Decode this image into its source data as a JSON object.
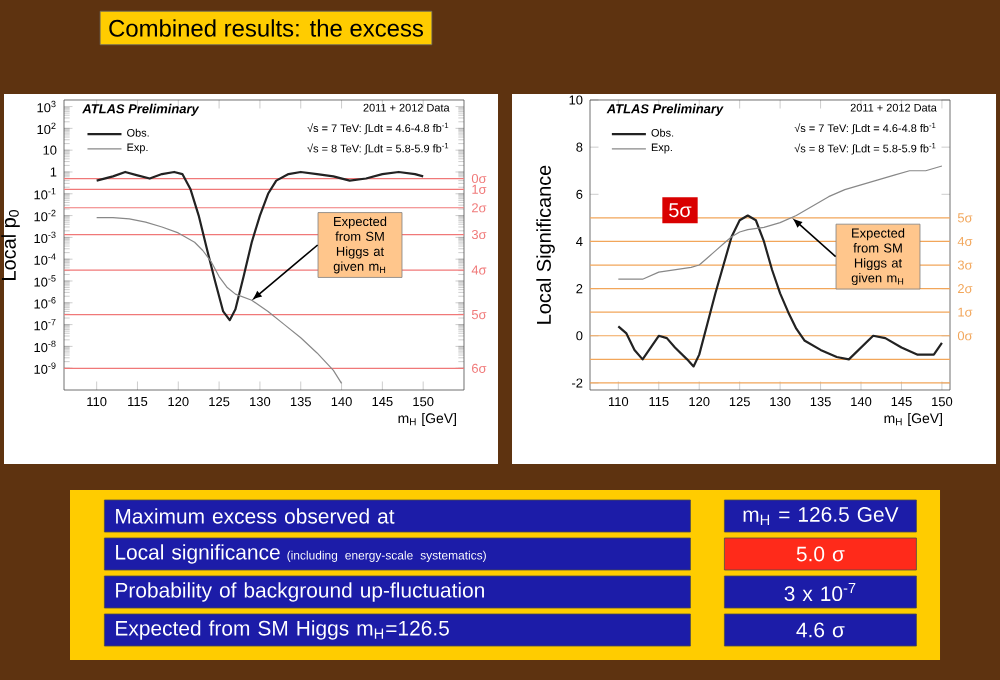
{
  "chart_data": [
    {
      "type": "line",
      "title": "Combined results: the excess",
      "xlabel": "m$_{H}$ [GeV]",
      "ylabel": "Local p$_{0}$",
      "log": "y",
      "legend": "top left",
      "xlim": [
        106,
        155
      ],
      "ylim": [
        1e-10,
        2000
      ],
      "xticks": [
        110,
        115,
        120,
        125,
        130,
        135,
        140,
        145,
        150
      ],
      "yticks": [
        {
          "value": 1e-09,
          "label": "10$^{-9}$"
        },
        {
          "value": 1e-08,
          "label": "10$^{-8}$"
        },
        {
          "value": 1e-07,
          "label": "10$^{-7}$"
        },
        {
          "value": 1e-06,
          "label": "10$^{-6}$"
        },
        {
          "value": 1e-05,
          "label": "10$^{-5}$"
        },
        {
          "value": 0.0001,
          "label": "10$^{-4}$"
        },
        {
          "value": 0.001,
          "label": "10$^{-3}$"
        },
        {
          "value": 0.01,
          "label": "10$^{-2}$"
        },
        {
          "value": 0.1,
          "label": "10$^{-1}$"
        },
        1,
        10,
        {
          "value": 100,
          "label": "10$^{2}$"
        },
        {
          "value": 1000,
          "label": "10$^{3}$"
        }
      ],
      "series": [
        {
          "name": "Obs.",
          "color": "#222222",
          "x": [
            110,
            112,
            113.5,
            115,
            116.5,
            118,
            119.5,
            120.5,
            121.5,
            122.5,
            123.5,
            124.5,
            125.5,
            126.3,
            127,
            128,
            129,
            130,
            131,
            132,
            133.5,
            135,
            137,
            139,
            141,
            143,
            145,
            147,
            149,
            150
          ],
          "values": [
            0.4,
            0.63,
            1,
            0.7,
            0.5,
            0.8,
            1,
            0.8,
            0.16,
            0.01,
            0.0003,
            1e-05,
            4e-07,
            1.6e-07,
            5e-07,
            1.6e-05,
            0.0006,
            0.01,
            0.1,
            0.4,
            0.8,
            1,
            0.8,
            0.63,
            0.4,
            0.5,
            0.8,
            1,
            0.8,
            0.63
          ]
        },
        {
          "name": "Exp.",
          "color": "#888888",
          "x": [
            110,
            112,
            114,
            116,
            118,
            120,
            122,
            123,
            124,
            125,
            126,
            127,
            129,
            131,
            133,
            135,
            137,
            139,
            140
          ],
          "values": [
            0.008,
            0.008,
            0.007,
            0.005,
            0.003,
            0.0016,
            0.0006,
            0.00025,
            8e-05,
            1.6e-05,
            5e-06,
            2.5e-06,
            1.3e-06,
            4e-07,
            1e-07,
            2.5e-08,
            5e-09,
            8e-10,
            2e-10
          ]
        }
      ],
      "ref_lines": [
        {
          "axis": "y",
          "value": 0.5,
          "label": "0σ",
          "color": "#f07878"
        },
        {
          "axis": "y",
          "value": 0.159,
          "label": "1σ",
          "color": "#f07878"
        },
        {
          "axis": "y",
          "value": 0.0228,
          "label": "2σ",
          "color": "#f07878"
        },
        {
          "axis": "y",
          "value": 0.00135,
          "label": "3σ",
          "color": "#f07878"
        },
        {
          "axis": "y",
          "value": 3.17e-05,
          "label": "4σ",
          "color": "#f07878"
        },
        {
          "axis": "y",
          "value": 2.87e-07,
          "label": "5σ",
          "color": "#f07878"
        },
        {
          "axis": "y",
          "value": 9.87e-10,
          "label": "6σ",
          "color": "#f07878"
        }
      ],
      "annotations": [
        "ATLAS Preliminary",
        "2011 + 2012 Data",
        "√s = 7 TeV: ∫Ldt = 4.6-4.8 fb$^{-1}$",
        "√s = 8 TeV: ∫Ldt = 5.8-5.9 fb$^{-1}$",
        {
          "text": "Expected from SM Higgs at given m$_{H}$",
          "x": 129,
          "y": 1.3e-06
        }
      ]
    },
    {
      "type": "line",
      "xlabel": "m$_{H}$ [GeV]",
      "ylabel": "Local Significance",
      "legend": "top left",
      "xlim": [
        106.5,
        151
      ],
      "ylim": [
        -2.3,
        10
      ],
      "xticks": [
        110,
        115,
        120,
        125,
        130,
        135,
        140,
        145,
        150
      ],
      "yticks": [
        -2,
        0,
        2,
        4,
        6,
        8,
        10
      ],
      "series": [
        {
          "name": "Obs.",
          "color": "#222222",
          "x": [
            110,
            111,
            112,
            113,
            114,
            115,
            116,
            117,
            118.5,
            119.3,
            120,
            121,
            122,
            123,
            124,
            125,
            126,
            127,
            128,
            129,
            130,
            131,
            132,
            133,
            135,
            137,
            138.5,
            140,
            141.5,
            143,
            145,
            147,
            149,
            150
          ],
          "values": [
            0.4,
            0.1,
            -0.6,
            -1.0,
            -0.5,
            0,
            -0.1,
            -0.5,
            -1.0,
            -1.3,
            -0.8,
            0.5,
            1.8,
            3.0,
            4.2,
            4.9,
            5.1,
            4.9,
            4.0,
            2.8,
            1.8,
            1.0,
            0.3,
            -0.2,
            -0.6,
            -0.9,
            -1.0,
            -0.5,
            0,
            -0.1,
            -0.5,
            -0.8,
            -0.8,
            -0.3
          ]
        },
        {
          "name": "Exp.",
          "color": "#888888",
          "x": [
            110,
            113,
            115,
            117,
            119,
            120,
            121,
            122,
            123,
            124,
            125,
            126,
            128,
            130,
            132,
            134,
            136,
            138,
            140,
            142,
            144,
            146,
            148,
            150
          ],
          "values": [
            2.4,
            2.4,
            2.7,
            2.8,
            2.9,
            3.0,
            3.3,
            3.6,
            3.9,
            4.2,
            4.4,
            4.5,
            4.6,
            4.8,
            5.1,
            5.5,
            5.9,
            6.2,
            6.4,
            6.6,
            6.8,
            7.0,
            7.0,
            7.2
          ]
        }
      ],
      "ref_lines": [
        {
          "axis": "y",
          "value": 5,
          "label": "5σ",
          "color": "#f2a65a"
        },
        {
          "axis": "y",
          "value": 4,
          "label": "4σ",
          "color": "#f2a65a"
        },
        {
          "axis": "y",
          "value": 3,
          "label": "3σ",
          "color": "#f2a65a"
        },
        {
          "axis": "y",
          "value": 2,
          "label": "2σ",
          "color": "#f2a65a"
        },
        {
          "axis": "y",
          "value": 1,
          "label": "1σ",
          "color": "#f2a65a"
        },
        {
          "axis": "y",
          "value": 0,
          "label": "0σ",
          "color": "#f2a65a"
        },
        {
          "axis": "y",
          "value": -1,
          "color": "#f2a65a"
        },
        {
          "axis": "y",
          "value": -2,
          "color": "#f2a65a"
        }
      ],
      "annotations": [
        "ATLAS Preliminary",
        "2011 + 2012 Data",
        "√s = 7 TeV: ∫Ldt = 4.6-4.8 fb$^{-1}$",
        "√s = 8 TeV: ∫Ldt = 5.8-5.9 fb$^{-1}$",
        "5σ",
        {
          "text": "Expected from SM Higgs at given m$_{H}$",
          "x": 131.5,
          "y": 5.0
        }
      ]
    },
    {
      "type": "other",
      "annotations": [
        "Maximum excess observed at",
        "m$_{H}$ = 126.5 GeV",
        "Local significance",
        "(including energy-scale systematics)",
        "5.0 σ",
        "Probability of background up-fluctuation",
        "3 x 10$^{-7}$",
        "Expected from SM Higgs m$_{H}$=126.5",
        "4.6 σ"
      ]
    }
  ]
}
